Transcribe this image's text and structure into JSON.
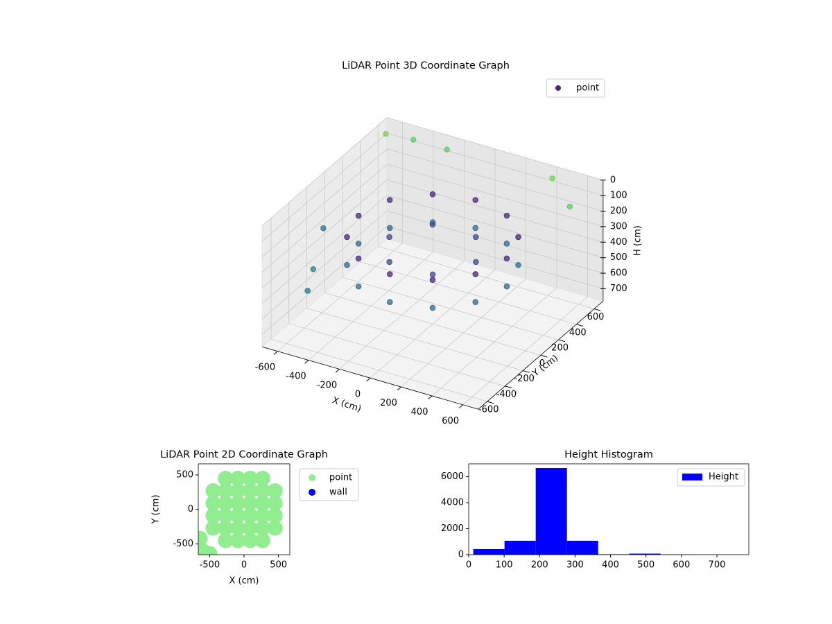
{
  "chart_data": [
    {
      "type": "scatter3d",
      "title": "LiDAR Point 3D Coordinate Graph",
      "xlabel": "X (cm)",
      "ylabel": "Y (cm)",
      "zlabel": "H (cm)",
      "xlim": [
        -700,
        700
      ],
      "ylim": [
        -700,
        700
      ],
      "zlim": [
        0,
        780
      ],
      "zinverted": true,
      "xticks": [
        -600,
        -400,
        -200,
        0,
        200,
        400,
        600
      ],
      "yticks": [
        -600,
        -400,
        -200,
        0,
        200,
        400,
        600
      ],
      "zticks": [
        0,
        100,
        200,
        300,
        400,
        500,
        600,
        700
      ],
      "grid": true,
      "legend": "upper right",
      "series": [
        {
          "name": "point",
          "color": "#482878",
          "x": [
            480,
            416,
            240,
            0,
            -240,
            -416,
            -480,
            -416,
            -240,
            0,
            240,
            416,
            480,
            416,
            240,
            0,
            -240,
            -416,
            -480,
            -416,
            -240,
            0,
            240,
            416,
            280,
            140,
            -140,
            -280,
            -140,
            140,
            -650,
            -500,
            -300,
            400,
            600,
            -650,
            -600,
            -550
          ],
          "y": [
            0,
            240,
            416,
            480,
            416,
            240,
            0,
            -240,
            -416,
            -480,
            -416,
            -240,
            0,
            240,
            416,
            480,
            416,
            240,
            0,
            -240,
            -416,
            -480,
            -416,
            -240,
            0,
            242,
            242,
            0,
            -242,
            -242,
            600,
            650,
            680,
            650,
            500,
            -100,
            -300,
            -450
          ],
          "z": [
            220,
            220,
            220,
            220,
            220,
            220,
            220,
            220,
            220,
            220,
            220,
            220,
            400,
            400,
            400,
            400,
            400,
            400,
            400,
            400,
            400,
            400,
            400,
            400,
            300,
            300,
            300,
            300,
            300,
            300,
            40,
            60,
            80,
            50,
            100,
            300,
            450,
            500
          ],
          "colors": [
            "#482878",
            "#482878",
            "#482878",
            "#482878",
            "#482878",
            "#482878",
            "#482878",
            "#482878",
            "#482878",
            "#482878",
            "#482878",
            "#482878",
            "#31688e",
            "#31688e",
            "#31688e",
            "#31688e",
            "#31688e",
            "#31688e",
            "#31688e",
            "#31688e",
            "#31688e",
            "#31688e",
            "#31688e",
            "#31688e",
            "#3e4a89",
            "#3e4a89",
            "#3e4a89",
            "#3e4a89",
            "#3e4a89",
            "#3e4a89",
            "#7ad151",
            "#5ec962",
            "#5ec962",
            "#73d056",
            "#5ec962",
            "#2a788e",
            "#26828e",
            "#2a788e"
          ]
        }
      ]
    },
    {
      "type": "scatter",
      "title": "LiDAR Point 2D Coordinate Graph",
      "xlabel": "X (cm)",
      "ylabel": "Y (cm)",
      "xlim": [
        -665,
        665
      ],
      "ylim": [
        -655,
        660
      ],
      "xticks": [
        -500,
        0,
        500
      ],
      "yticks": [
        -500,
        0,
        500
      ],
      "legend": "outside right",
      "series": [
        {
          "name": "point",
          "color": "#90ee90",
          "x": [
            -270,
            -90,
            90,
            270,
            -450,
            -270,
            -90,
            90,
            270,
            450,
            -450,
            -270,
            -90,
            90,
            270,
            450,
            -450,
            -270,
            -90,
            90,
            270,
            450,
            -450,
            -270,
            -90,
            90,
            270,
            450,
            -270,
            -90,
            90,
            270,
            -600,
            -500,
            -640
          ],
          "y": [
            -450,
            -450,
            -450,
            -450,
            -270,
            -270,
            -270,
            -270,
            -270,
            -270,
            -90,
            -90,
            -90,
            -90,
            -90,
            -90,
            90,
            90,
            90,
            90,
            90,
            90,
            270,
            270,
            270,
            270,
            270,
            270,
            450,
            450,
            450,
            450,
            -600,
            -640,
            -420
          ]
        },
        {
          "name": "wall",
          "color": "#0000ff",
          "x": [],
          "y": []
        }
      ]
    },
    {
      "type": "histogram",
      "title": "Height Histogram",
      "bins": [
        13,
        101,
        189,
        277,
        365,
        453,
        541,
        629,
        717,
        805
      ],
      "xlim": [
        0,
        790
      ],
      "ylim": [
        0,
        6990
      ],
      "xticks": [
        0,
        100,
        200,
        300,
        400,
        500,
        600,
        700
      ],
      "yticks": [
        0,
        2000,
        4000,
        6000
      ],
      "legend": "upper right",
      "series": [
        {
          "name": "Height",
          "color": "#0000ff",
          "values": [
            430,
            1070,
            6670,
            1070,
            30,
            80,
            20,
            10,
            10
          ]
        }
      ]
    }
  ]
}
